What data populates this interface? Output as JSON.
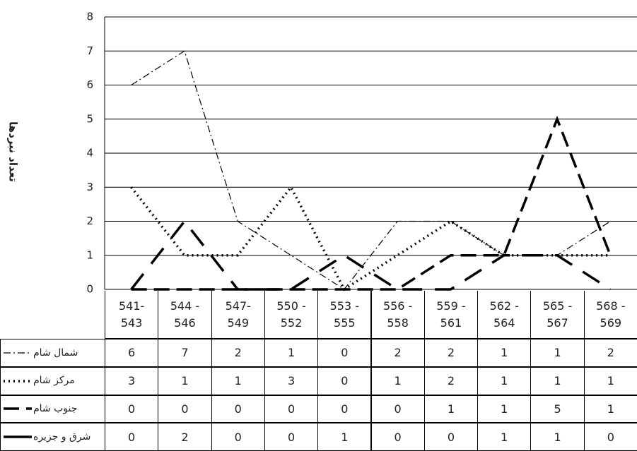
{
  "chart_data": {
    "type": "line",
    "y_label": "تعداد نبردها",
    "categories": [
      "541-\n543",
      "544 -\n546",
      "547-\n549",
      "550 -\n552",
      "553 -\n555",
      "556 -\n558",
      "559 -\n561",
      "562 -\n564",
      "565 -\n567",
      "568 -\n569"
    ],
    "series": [
      {
        "name": "شمال شام",
        "color": "#000000",
        "width": 1.2,
        "dash": "10,4,2,4",
        "values": [
          6,
          7,
          2,
          1,
          0,
          2,
          2,
          1,
          1,
          2
        ]
      },
      {
        "name": "مرکز شام",
        "color": "#000000",
        "width": 3.5,
        "dash": "2,5",
        "values": [
          3,
          1,
          1,
          3,
          0,
          1,
          2,
          1,
          1,
          1
        ]
      },
      {
        "name": "جنوب شام",
        "color": "#000000",
        "width": 3.5,
        "dash": "22,10",
        "values": [
          0,
          0,
          0,
          0,
          0,
          0,
          1,
          1,
          5,
          1
        ]
      },
      {
        "name": "شرق و جزیره",
        "color": "#000000",
        "width": 3.5,
        "dash": "28,18",
        "values": [
          0,
          2,
          0,
          0,
          1,
          0,
          0,
          1,
          1,
          0
        ]
      }
    ],
    "ylim": [
      0,
      8
    ],
    "yticks": [
      0,
      1,
      2,
      3,
      4,
      5,
      6,
      7,
      8
    ],
    "grid": true
  }
}
